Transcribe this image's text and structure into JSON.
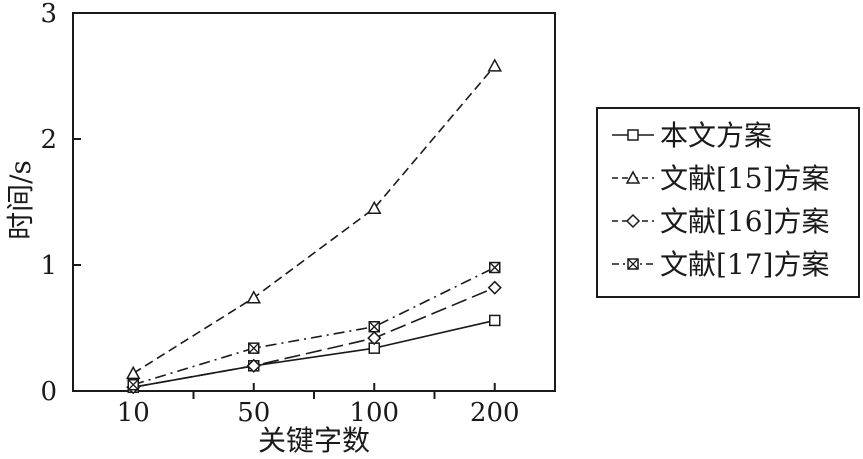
{
  "chart_data": {
    "type": "line",
    "categories": [
      "10",
      "50",
      "100",
      "200"
    ],
    "xlabel": "关键字数",
    "ylabel": "时间/s",
    "ylim": [
      0,
      3
    ],
    "yticks": [
      "0",
      "1",
      "2",
      "3"
    ],
    "grid": false,
    "legend_position": "right",
    "series": [
      {
        "name": "本文方案",
        "values": [
          0.03,
          0.2,
          0.34,
          0.56
        ],
        "marker": "square",
        "dash": "solid",
        "color": "#1a1a1a"
      },
      {
        "name": "文献[15]方案",
        "values": [
          0.14,
          0.74,
          1.45,
          2.58
        ],
        "marker": "triangle",
        "dash": "dash",
        "color": "#1a1a1a"
      },
      {
        "name": "文献[16]方案",
        "values": [
          0.03,
          0.2,
          0.42,
          0.82
        ],
        "marker": "diamond",
        "dash": "longdash",
        "color": "#1a1a1a"
      },
      {
        "name": "文献[17]方案",
        "values": [
          0.05,
          0.34,
          0.51,
          0.98
        ],
        "marker": "boxx",
        "dash": "dashdot",
        "color": "#1a1a1a"
      }
    ]
  }
}
